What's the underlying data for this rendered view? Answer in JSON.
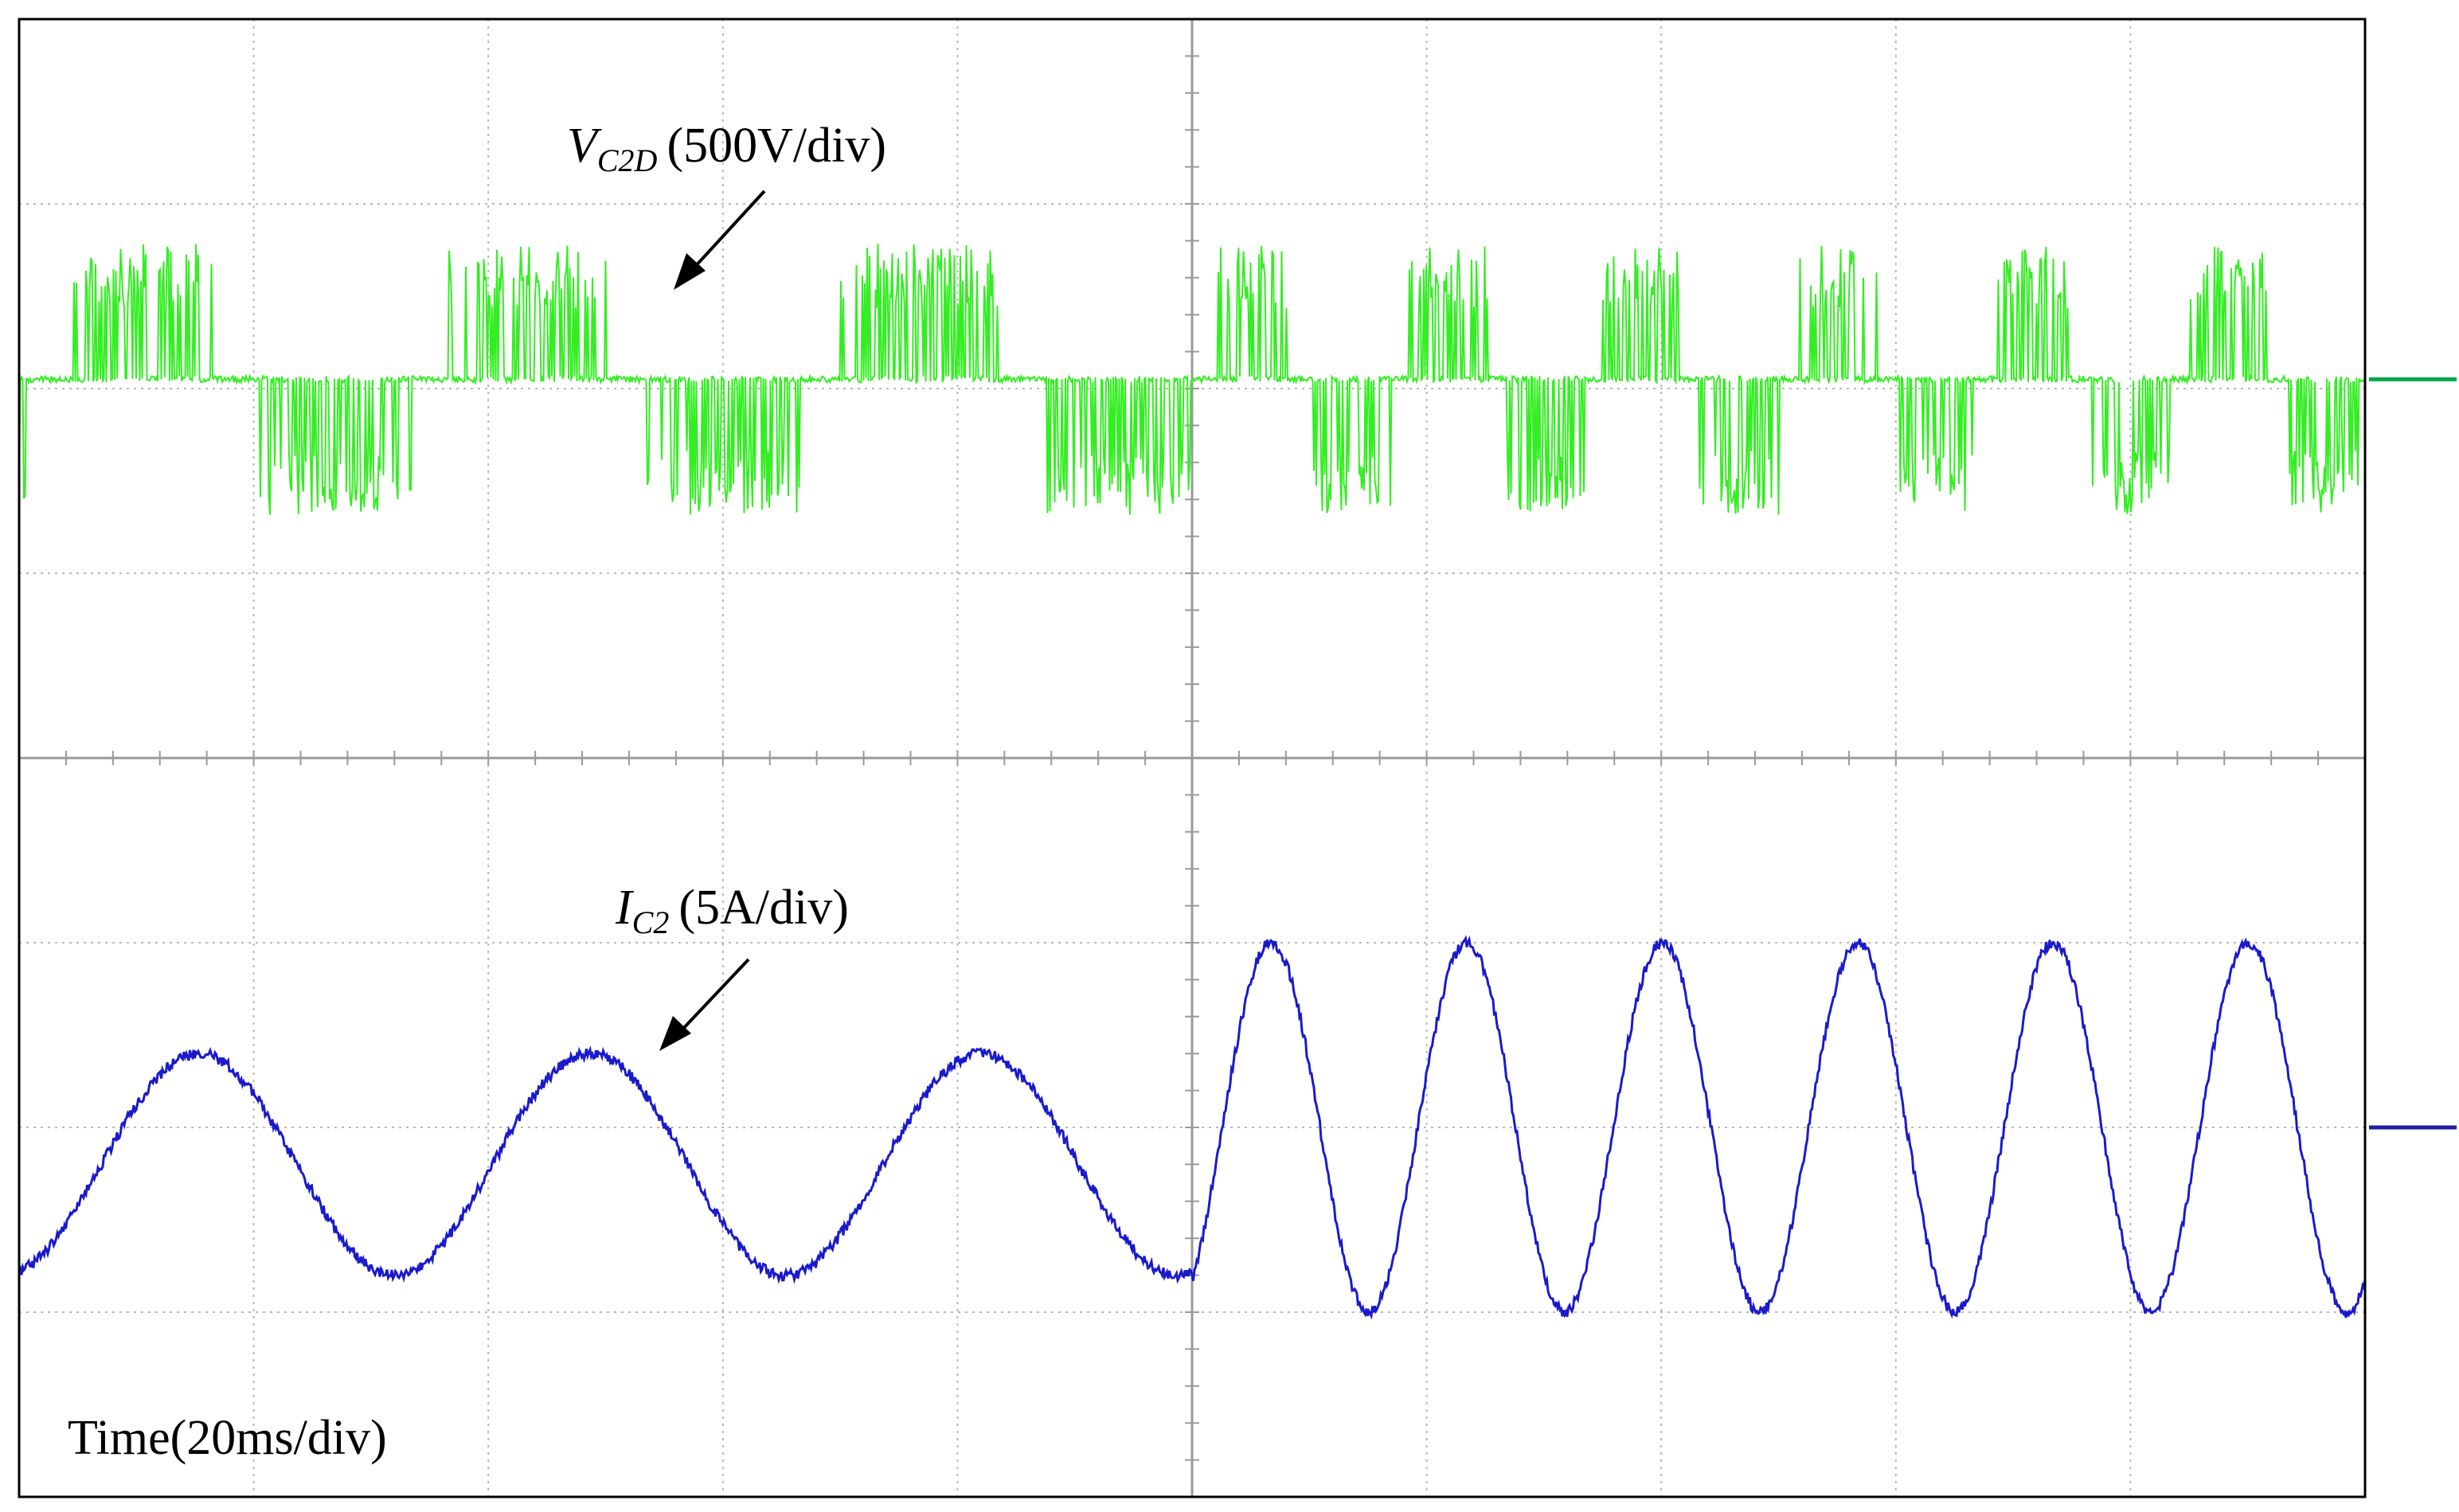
{
  "chart_data": {
    "type": "line",
    "time_label": "Time(20ms/div)",
    "grid": true,
    "time_divisions": 10,
    "vertical_divisions": 8,
    "series": [
      {
        "name_main": "V",
        "name_sub": "C2D",
        "scale": "(500V/div)",
        "color": "#33ee22",
        "marker_color": "#00a84f",
        "baseline_div": 2.05,
        "description_values": {
          "pulse_amplitude_div": 0.7,
          "phase1_fundamental_cycles_per_5div": 3,
          "phase2_fundamental_cycles_per_5div": 6
        }
      },
      {
        "name_main": "I",
        "name_sub": "C2",
        "scale": "(5A/div)",
        "color": "#1a1acc",
        "marker_color": "#1e1ea8",
        "baseline_div": -2.0,
        "description_values": {
          "amplitude_phase1_div": 0.6,
          "amplitude_phase2_div": 1.0,
          "cycles_phase1": 3,
          "cycles_phase2": 6
        }
      }
    ]
  }
}
